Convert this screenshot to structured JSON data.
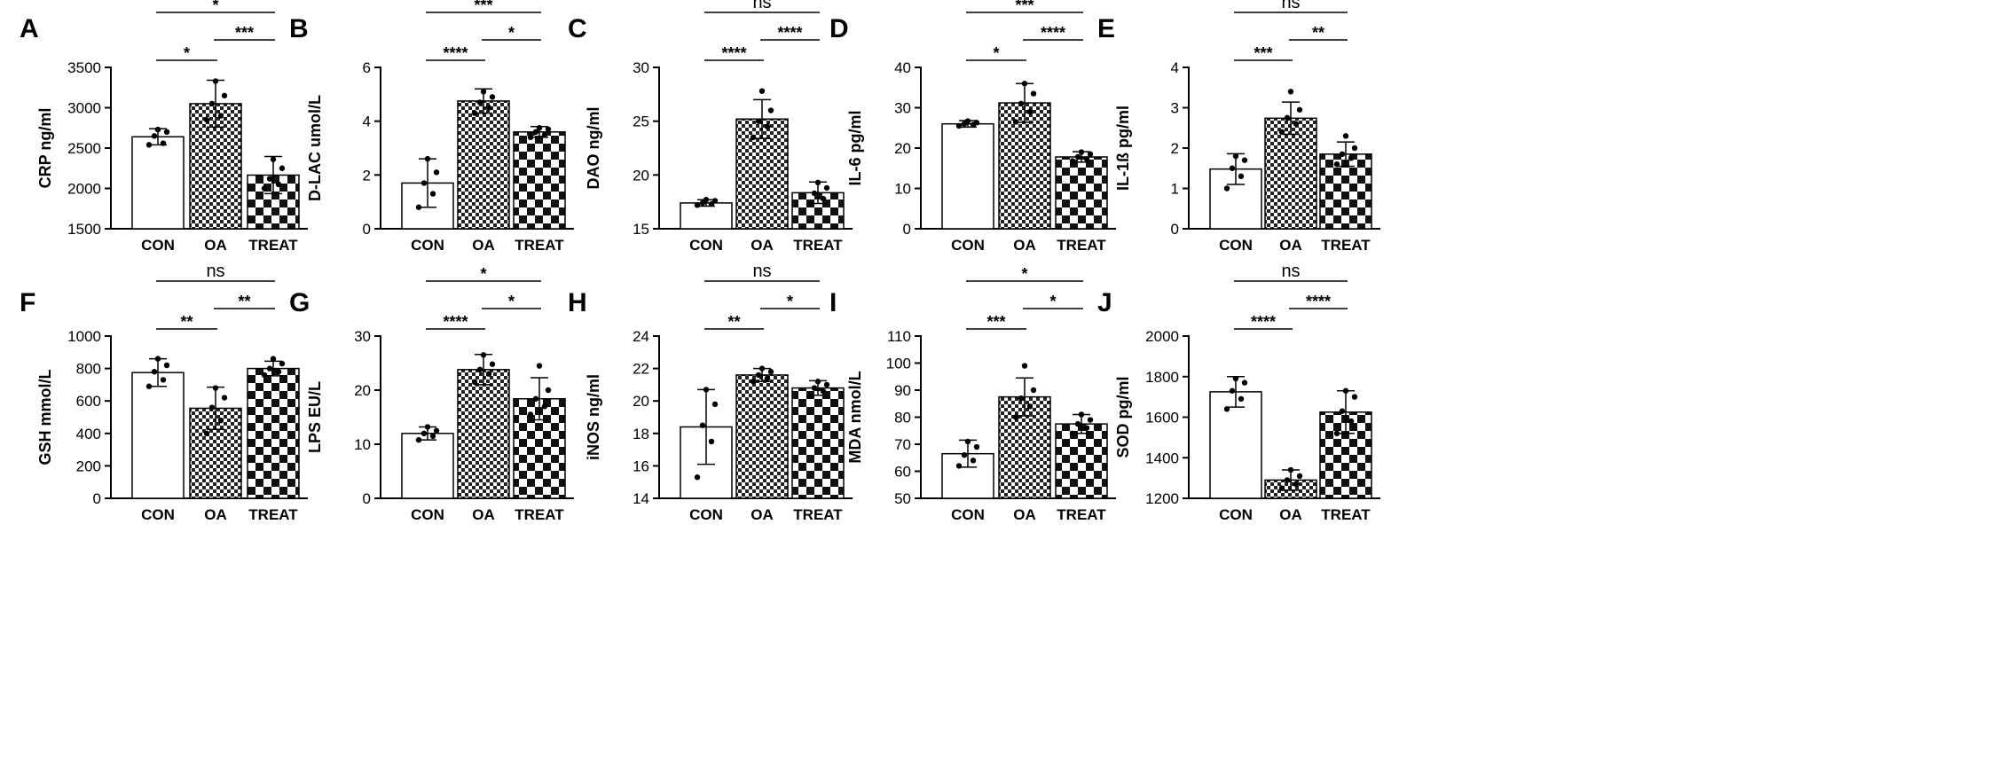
{
  "figure": {
    "categories": [
      "CON",
      "OA",
      "TREAT"
    ]
  },
  "chart_data": [
    {
      "type": "bar",
      "panel_label": "A",
      "ylabel": "CRP ng/ml",
      "categories": [
        "CON",
        "OA",
        "TREAT"
      ],
      "values": [
        2640,
        3050,
        2165
      ],
      "errors": [
        100,
        290,
        230
      ],
      "points": [
        [
          2540,
          2560,
          2650,
          2700,
          2730
        ],
        [
          2850,
          2900,
          3050,
          3150,
          3330
        ],
        [
          2000,
          2050,
          2120,
          2250,
          2360
        ]
      ],
      "ylim": [
        1500,
        3500
      ],
      "yticks": [
        1500,
        2000,
        2500,
        3000,
        3500
      ],
      "significance": [
        {
          "pair": [
            0,
            1
          ],
          "label": "*"
        },
        {
          "pair": [
            1,
            2
          ],
          "label": "***"
        },
        {
          "pair": [
            0,
            2
          ],
          "label": "*"
        }
      ]
    },
    {
      "type": "bar",
      "panel_label": "B",
      "ylabel": "D-LAC umol/L",
      "categories": [
        "CON",
        "OA",
        "TREAT"
      ],
      "values": [
        1.7,
        4.75,
        3.6
      ],
      "errors": [
        0.9,
        0.45,
        0.2
      ],
      "points": [
        [
          0.8,
          1.3,
          1.7,
          2.1,
          2.6
        ],
        [
          4.3,
          4.5,
          4.7,
          4.9,
          5.1
        ],
        [
          3.4,
          3.5,
          3.6,
          3.7,
          3.75
        ]
      ],
      "ylim": [
        0,
        6
      ],
      "yticks": [
        0,
        2,
        4,
        6
      ],
      "significance": [
        {
          "pair": [
            0,
            1
          ],
          "label": "****"
        },
        {
          "pair": [
            1,
            2
          ],
          "label": "*"
        },
        {
          "pair": [
            0,
            2
          ],
          "label": "***"
        }
      ]
    },
    {
      "type": "bar",
      "panel_label": "C",
      "ylabel": "DAO ng/ml",
      "categories": [
        "CON",
        "OA",
        "TREAT"
      ],
      "values": [
        17.4,
        25.2,
        18.35
      ],
      "errors": [
        0.3,
        1.8,
        1.0
      ],
      "points": [
        [
          17.2,
          17.3,
          17.4,
          17.6,
          17.7
        ],
        [
          23.5,
          24.5,
          25.0,
          26.0,
          27.8
        ],
        [
          17.3,
          17.8,
          18.3,
          18.8,
          19.3
        ]
      ],
      "ylim": [
        15,
        30
      ],
      "yticks": [
        15,
        20,
        25,
        30
      ],
      "significance": [
        {
          "pair": [
            0,
            1
          ],
          "label": "****"
        },
        {
          "pair": [
            1,
            2
          ],
          "label": "****"
        },
        {
          "pair": [
            0,
            2
          ],
          "label": "ns"
        }
      ]
    },
    {
      "type": "bar",
      "panel_label": "D",
      "ylabel": "IL-6 pg/ml",
      "categories": [
        "CON",
        "OA",
        "TREAT"
      ],
      "values": [
        26.0,
        31.2,
        17.8
      ],
      "errors": [
        0.8,
        4.8,
        1.3
      ],
      "points": [
        [
          25.5,
          25.8,
          26.0,
          26.3,
          26.7
        ],
        [
          26.5,
          29.0,
          31.0,
          33.5,
          36.0
        ],
        [
          16.8,
          17.3,
          17.8,
          18.5,
          19.0
        ]
      ],
      "ylim": [
        0,
        40
      ],
      "yticks": [
        0,
        10,
        20,
        30,
        40
      ],
      "significance": [
        {
          "pair": [
            0,
            1
          ],
          "label": "*"
        },
        {
          "pair": [
            1,
            2
          ],
          "label": "****"
        },
        {
          "pair": [
            0,
            2
          ],
          "label": "***"
        }
      ]
    },
    {
      "type": "bar",
      "panel_label": "E",
      "ylabel": "IL-1ß pg/ml",
      "categories": [
        "CON",
        "OA",
        "TREAT"
      ],
      "values": [
        1.48,
        2.74,
        1.85
      ],
      "errors": [
        0.38,
        0.4,
        0.3
      ],
      "points": [
        [
          1.0,
          1.3,
          1.5,
          1.7,
          1.8
        ],
        [
          2.4,
          2.6,
          2.75,
          2.95,
          3.4
        ],
        [
          1.6,
          1.75,
          1.85,
          2.0,
          2.3
        ]
      ],
      "ylim": [
        0,
        4
      ],
      "yticks": [
        0,
        1,
        2,
        3,
        4
      ],
      "significance": [
        {
          "pair": [
            0,
            1
          ],
          "label": "***"
        },
        {
          "pair": [
            1,
            2
          ],
          "label": "**"
        },
        {
          "pair": [
            0,
            2
          ],
          "label": "ns"
        }
      ]
    },
    {
      "type": "bar",
      "panel_label": "F",
      "ylabel": "GSH mmol/L",
      "categories": [
        "CON",
        "OA",
        "TREAT"
      ],
      "values": [
        775,
        555,
        800
      ],
      "errors": [
        85,
        130,
        45
      ],
      "points": [
        [
          690,
          730,
          780,
          820,
          860
        ],
        [
          400,
          480,
          560,
          620,
          680
        ],
        [
          760,
          780,
          800,
          830,
          860
        ]
      ],
      "ylim": [
        0,
        1000
      ],
      "yticks": [
        0,
        200,
        400,
        600,
        800,
        1000
      ],
      "significance": [
        {
          "pair": [
            0,
            1
          ],
          "label": "**"
        },
        {
          "pair": [
            1,
            2
          ],
          "label": "**"
        },
        {
          "pair": [
            0,
            2
          ],
          "label": "ns"
        }
      ]
    },
    {
      "type": "bar",
      "panel_label": "G",
      "ylabel": "LPS EU/L",
      "categories": [
        "CON",
        "OA",
        "TREAT"
      ],
      "values": [
        12.0,
        23.8,
        18.4
      ],
      "errors": [
        1.2,
        2.8,
        3.9
      ],
      "points": [
        [
          10.8,
          11.5,
          12.0,
          12.5,
          13.2
        ],
        [
          21.5,
          23.0,
          23.8,
          24.8,
          26.5
        ],
        [
          15.5,
          17.0,
          18.4,
          20.0,
          24.5
        ]
      ],
      "ylim": [
        0,
        30
      ],
      "yticks": [
        0,
        10,
        20,
        30
      ],
      "significance": [
        {
          "pair": [
            0,
            1
          ],
          "label": "****"
        },
        {
          "pair": [
            1,
            2
          ],
          "label": "*"
        },
        {
          "pair": [
            0,
            2
          ],
          "label": "*"
        }
      ]
    },
    {
      "type": "bar",
      "panel_label": "H",
      "ylabel": "iNOS ng/ml",
      "categories": [
        "CON",
        "OA",
        "TREAT"
      ],
      "values": [
        18.4,
        21.6,
        20.8
      ],
      "errors": [
        2.3,
        0.4,
        0.45
      ],
      "points": [
        [
          15.3,
          17.5,
          18.5,
          19.8,
          20.7
        ],
        [
          21.2,
          21.4,
          21.6,
          21.8,
          22.0
        ],
        [
          20.3,
          20.6,
          20.8,
          21.0,
          21.2
        ]
      ],
      "ylim": [
        14,
        24
      ],
      "yticks": [
        14,
        16,
        18,
        20,
        22,
        24
      ],
      "significance": [
        {
          "pair": [
            0,
            1
          ],
          "label": "**"
        },
        {
          "pair": [
            1,
            2
          ],
          "label": "*"
        },
        {
          "pair": [
            0,
            2
          ],
          "label": "ns"
        }
      ]
    },
    {
      "type": "bar",
      "panel_label": "I",
      "ylabel": "MDA nmol/L",
      "categories": [
        "CON",
        "OA",
        "TREAT"
      ],
      "values": [
        66.5,
        87.5,
        77.5
      ],
      "errors": [
        5.0,
        7.0,
        3.5
      ],
      "points": [
        [
          62,
          64,
          66,
          69,
          71
        ],
        [
          80,
          84,
          87,
          90,
          99
        ],
        [
          74,
          76,
          77.5,
          79,
          81
        ]
      ],
      "ylim": [
        50,
        110
      ],
      "yticks": [
        50,
        60,
        70,
        80,
        90,
        100,
        110
      ],
      "significance": [
        {
          "pair": [
            0,
            1
          ],
          "label": "***"
        },
        {
          "pair": [
            1,
            2
          ],
          "label": "*"
        },
        {
          "pair": [
            0,
            2
          ],
          "label": "*"
        }
      ]
    },
    {
      "type": "bar",
      "panel_label": "J",
      "ylabel": "SOD pg/ml",
      "categories": [
        "CON",
        "OA",
        "TREAT"
      ],
      "values": [
        1725,
        1290,
        1625
      ],
      "errors": [
        75,
        50,
        105
      ],
      "points": [
        [
          1640,
          1690,
          1730,
          1770,
          1790
        ],
        [
          1250,
          1270,
          1290,
          1310,
          1340
        ],
        [
          1520,
          1580,
          1630,
          1700,
          1730
        ]
      ],
      "ylim": [
        1200,
        2000
      ],
      "yticks": [
        1200,
        1400,
        1600,
        1800,
        2000
      ],
      "significance": [
        {
          "pair": [
            0,
            1
          ],
          "label": "****"
        },
        {
          "pair": [
            1,
            2
          ],
          "label": "****"
        },
        {
          "pair": [
            0,
            2
          ],
          "label": "ns"
        }
      ]
    }
  ]
}
